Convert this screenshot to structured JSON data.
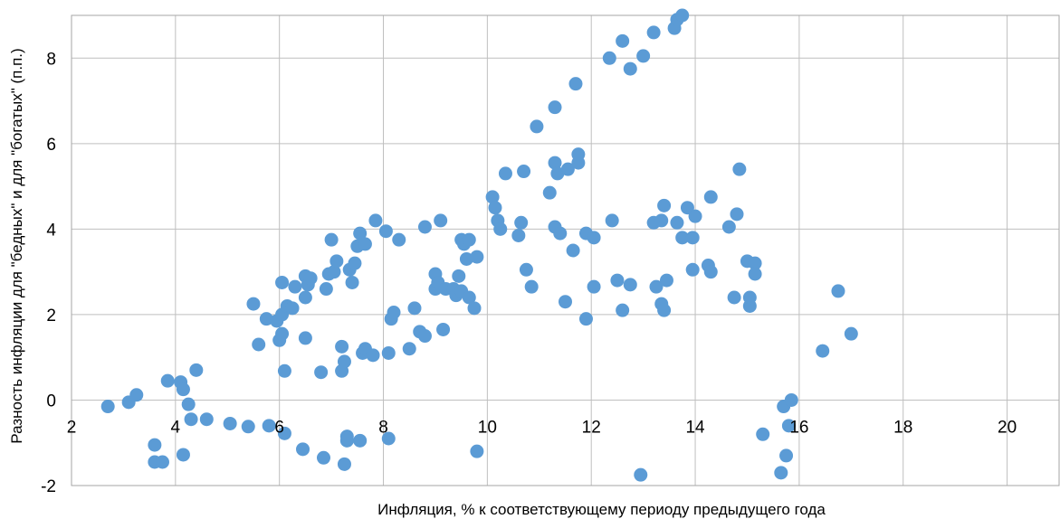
{
  "chart_data": {
    "type": "scatter",
    "title": "",
    "xlabel": "Инфляция, % к соответствующему периоду предыдущего года",
    "ylabel": "Разность инфляции для \"бедных\" и для \"богатых\" (п.п.)",
    "xlim": [
      2,
      21
    ],
    "ylim": [
      -2,
      9
    ],
    "xticks": [
      2,
      4,
      6,
      8,
      10,
      12,
      14,
      16,
      18,
      20
    ],
    "xtick_labels": [
      "2",
      "4",
      "6",
      "8",
      "10",
      "12",
      "14",
      "16",
      "18",
      "20"
    ],
    "yticks": [
      -2,
      0,
      2,
      4,
      6,
      8
    ],
    "ytick_labels": [
      "-2",
      "0",
      "2",
      "4",
      "6",
      "8"
    ],
    "grid": true,
    "legend": "none",
    "colors": {
      "point": "#5b9bd5",
      "grid": "#bfbfbf",
      "frame": "#a6a6a6"
    },
    "series": [
      {
        "name": "",
        "points": [
          [
            2.7,
            -0.15
          ],
          [
            3.1,
            -0.05
          ],
          [
            3.25,
            0.12
          ],
          [
            3.6,
            -1.05
          ],
          [
            3.6,
            -1.45
          ],
          [
            3.75,
            -1.45
          ],
          [
            3.85,
            0.45
          ],
          [
            4.1,
            0.42
          ],
          [
            4.15,
            0.25
          ],
          [
            4.25,
            -0.1
          ],
          [
            4.3,
            -0.45
          ],
          [
            4.4,
            0.7
          ],
          [
            4.6,
            -0.45
          ],
          [
            4.15,
            -1.28
          ],
          [
            5.05,
            -0.55
          ],
          [
            5.4,
            -0.62
          ],
          [
            5.5,
            2.25
          ],
          [
            5.6,
            1.3
          ],
          [
            5.75,
            1.9
          ],
          [
            5.8,
            -0.6
          ],
          [
            5.95,
            1.85
          ],
          [
            6.0,
            1.4
          ],
          [
            6.05,
            2.0
          ],
          [
            6.05,
            1.55
          ],
          [
            6.05,
            2.75
          ],
          [
            6.1,
            0.68
          ],
          [
            6.1,
            -0.78
          ],
          [
            6.15,
            2.2
          ],
          [
            6.25,
            2.15
          ],
          [
            6.3,
            2.65
          ],
          [
            6.45,
            -1.15
          ],
          [
            6.5,
            2.4
          ],
          [
            6.5,
            2.9
          ],
          [
            6.5,
            1.45
          ],
          [
            6.55,
            2.7
          ],
          [
            6.6,
            2.85
          ],
          [
            6.8,
            0.65
          ],
          [
            6.85,
            -1.35
          ],
          [
            6.9,
            2.6
          ],
          [
            6.95,
            2.95
          ],
          [
            7.0,
            3.75
          ],
          [
            7.05,
            3.0
          ],
          [
            7.1,
            3.25
          ],
          [
            7.2,
            1.25
          ],
          [
            7.2,
            0.68
          ],
          [
            7.25,
            0.9
          ],
          [
            7.25,
            -1.5
          ],
          [
            7.3,
            -0.85
          ],
          [
            7.3,
            -0.95
          ],
          [
            7.35,
            3.05
          ],
          [
            7.4,
            2.75
          ],
          [
            7.45,
            3.2
          ],
          [
            7.5,
            3.6
          ],
          [
            7.55,
            3.9
          ],
          [
            7.55,
            -0.95
          ],
          [
            7.6,
            1.1
          ],
          [
            7.65,
            1.2
          ],
          [
            7.65,
            3.65
          ],
          [
            7.8,
            1.05
          ],
          [
            7.85,
            4.2
          ],
          [
            8.05,
            3.95
          ],
          [
            8.1,
            1.1
          ],
          [
            8.1,
            -0.9
          ],
          [
            8.15,
            1.9
          ],
          [
            8.2,
            2.05
          ],
          [
            8.3,
            3.75
          ],
          [
            8.5,
            1.2
          ],
          [
            8.6,
            2.15
          ],
          [
            8.7,
            1.6
          ],
          [
            8.8,
            4.05
          ],
          [
            8.8,
            1.5
          ],
          [
            9.0,
            2.95
          ],
          [
            9.0,
            2.6
          ],
          [
            9.05,
            2.75
          ],
          [
            9.1,
            4.2
          ],
          [
            9.15,
            1.65
          ],
          [
            9.2,
            2.6
          ],
          [
            9.35,
            2.6
          ],
          [
            9.4,
            2.45
          ],
          [
            9.45,
            2.9
          ],
          [
            9.5,
            3.75
          ],
          [
            9.5,
            2.55
          ],
          [
            9.55,
            3.65
          ],
          [
            9.6,
            3.3
          ],
          [
            9.65,
            3.75
          ],
          [
            9.65,
            2.4
          ],
          [
            9.75,
            2.15
          ],
          [
            9.8,
            3.35
          ],
          [
            9.8,
            -1.2
          ],
          [
            10.1,
            4.75
          ],
          [
            10.15,
            4.5
          ],
          [
            10.2,
            4.2
          ],
          [
            10.25,
            4.0
          ],
          [
            10.35,
            5.3
          ],
          [
            10.6,
            3.85
          ],
          [
            10.65,
            4.15
          ],
          [
            10.7,
            5.35
          ],
          [
            10.75,
            3.05
          ],
          [
            10.85,
            2.65
          ],
          [
            10.95,
            6.4
          ],
          [
            11.2,
            4.85
          ],
          [
            11.3,
            6.85
          ],
          [
            11.3,
            5.55
          ],
          [
            11.3,
            4.05
          ],
          [
            11.35,
            5.3
          ],
          [
            11.4,
            3.9
          ],
          [
            11.5,
            2.3
          ],
          [
            11.55,
            5.4
          ],
          [
            11.65,
            3.5
          ],
          [
            11.7,
            7.4
          ],
          [
            11.75,
            5.55
          ],
          [
            11.75,
            5.75
          ],
          [
            11.9,
            1.9
          ],
          [
            11.9,
            3.9
          ],
          [
            12.05,
            3.8
          ],
          [
            12.05,
            2.65
          ],
          [
            12.4,
            4.2
          ],
          [
            12.35,
            8.0
          ],
          [
            12.5,
            2.8
          ],
          [
            12.6,
            2.1
          ],
          [
            12.6,
            8.4
          ],
          [
            12.75,
            2.7
          ],
          [
            12.75,
            7.75
          ],
          [
            12.95,
            -1.75
          ],
          [
            13.0,
            8.05
          ],
          [
            13.2,
            8.6
          ],
          [
            13.2,
            4.15
          ],
          [
            13.25,
            2.65
          ],
          [
            13.35,
            4.2
          ],
          [
            13.35,
            2.25
          ],
          [
            13.4,
            4.55
          ],
          [
            13.45,
            2.8
          ],
          [
            13.4,
            2.1
          ],
          [
            13.6,
            8.7
          ],
          [
            13.65,
            8.9
          ],
          [
            13.65,
            4.15
          ],
          [
            13.75,
            9.0
          ],
          [
            13.75,
            3.8
          ],
          [
            13.85,
            4.5
          ],
          [
            13.95,
            3.05
          ],
          [
            13.95,
            3.8
          ],
          [
            14.0,
            4.3
          ],
          [
            14.25,
            3.15
          ],
          [
            14.3,
            3.0
          ],
          [
            14.3,
            4.75
          ],
          [
            14.65,
            4.05
          ],
          [
            14.75,
            2.4
          ],
          [
            14.8,
            4.35
          ],
          [
            14.85,
            5.4
          ],
          [
            15.0,
            3.25
          ],
          [
            15.05,
            2.2
          ],
          [
            15.05,
            2.4
          ],
          [
            15.15,
            3.2
          ],
          [
            15.15,
            2.95
          ],
          [
            15.3,
            -0.8
          ],
          [
            15.65,
            -1.7
          ],
          [
            15.7,
            -0.15
          ],
          [
            15.75,
            -1.3
          ],
          [
            15.8,
            -0.6
          ],
          [
            15.85,
            0.0
          ],
          [
            16.45,
            1.15
          ],
          [
            16.75,
            2.55
          ],
          [
            17.0,
            1.55
          ]
        ]
      }
    ]
  }
}
